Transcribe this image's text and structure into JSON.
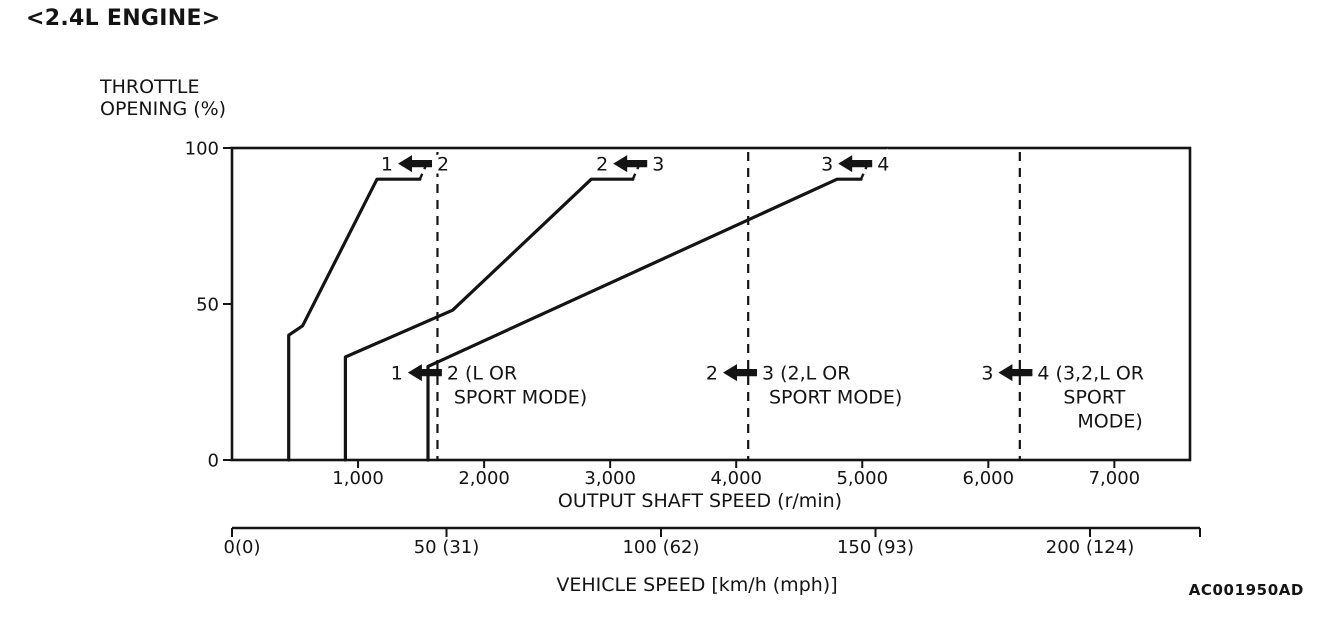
{
  "title": "<2.4L ENGINE>",
  "figure_code": "AC001950AD",
  "colors": {
    "ink": "#141414",
    "background": "#ffffff"
  },
  "chart_data": {
    "type": "line",
    "y_axis": {
      "label_lines": [
        "THROTTLE",
        "OPENING (%)"
      ],
      "range": [
        0,
        100
      ],
      "ticks": [
        100,
        50,
        0
      ]
    },
    "x_axis": {
      "label": "OUTPUT SHAFT SPEED (r/min)",
      "range": [
        0,
        7600
      ],
      "ticks": [
        1000,
        2000,
        3000,
        4000,
        5000,
        6000,
        7000
      ],
      "tick_labels": [
        "1,000",
        "2,000",
        "3,000",
        "4,000",
        "5,000",
        "6,000",
        "7,000"
      ]
    },
    "x2_axis": {
      "label": "VEHICLE SPEED [km/h (mph)]",
      "range": [
        0,
        200
      ],
      "ticks": [
        0,
        50,
        100,
        150,
        200
      ],
      "tick_labels": [
        "0(0)",
        "50 (31)",
        "100 (62)",
        "150 (93)",
        "200 (124)"
      ]
    },
    "series": [
      {
        "name": "downshift-line-2-to-1",
        "points": [
          [
            450,
            0
          ],
          [
            450,
            40
          ],
          [
            560,
            43
          ],
          [
            1150,
            90
          ],
          [
            1490,
            90
          ]
        ],
        "dashed_tail": [
          [
            1490,
            90
          ],
          [
            1545,
            95
          ]
        ]
      },
      {
        "name": "downshift-line-3-to-2",
        "points": [
          [
            900,
            0
          ],
          [
            900,
            33
          ],
          [
            1750,
            48
          ],
          [
            2850,
            90
          ],
          [
            3180,
            90
          ]
        ],
        "dashed_tail": [
          [
            3180,
            90
          ],
          [
            3235,
            95
          ]
        ]
      },
      {
        "name": "downshift-line-4-to-3",
        "points": [
          [
            1555,
            0
          ],
          [
            1555,
            30
          ],
          [
            4800,
            90
          ],
          [
            4990,
            90
          ]
        ],
        "dashed_tail": [
          [
            4990,
            90
          ],
          [
            5045,
            95
          ]
        ]
      }
    ],
    "mode_lines": [
      {
        "name": "mode-line-2-to-1-sport",
        "x": 1630
      },
      {
        "name": "mode-line-3-to-2-sport",
        "x": 4095
      },
      {
        "name": "mode-line-4-to-3-sport",
        "x": 6250
      }
    ],
    "shift_labels_top": [
      {
        "left": "1",
        "right_lines": [
          "2"
        ],
        "x": 1452,
        "y": 95
      },
      {
        "left": "2",
        "right_lines": [
          "3"
        ],
        "x": 3159,
        "y": 95
      },
      {
        "left": "3",
        "right_lines": [
          "4"
        ],
        "x": 4944,
        "y": 95
      }
    ],
    "shift_labels_mid": [
      {
        "left": "1",
        "right_lines": [
          "2 (L OR",
          "SPORT MODE)"
        ],
        "x": 1530,
        "y": 28
      },
      {
        "left": "2",
        "right_lines": [
          "3 (2,L OR",
          "SPORT MODE)"
        ],
        "x": 4030,
        "y": 28
      },
      {
        "left": "3",
        "right_lines": [
          "4 (3,2,L OR",
          "SPORT",
          "MODE)"
        ],
        "x": 6215,
        "y": 28
      }
    ]
  }
}
